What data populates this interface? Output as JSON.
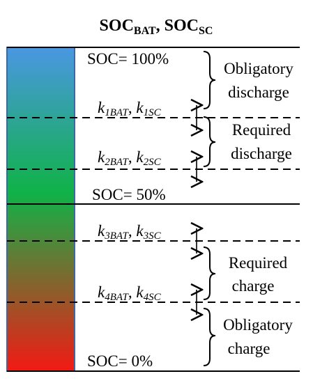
{
  "title": {
    "prefix1": "SOC",
    "sub1": "BAT",
    "separator": ", ",
    "prefix2": "SOC",
    "sub2": "SC"
  },
  "levels": {
    "top": "SOC= 100%",
    "middle": "SOC= 50%",
    "bottom": "SOC= 0%"
  },
  "thresholds": [
    {
      "k": "k",
      "i1": "1BAT",
      "sep": ", ",
      "k2": "k",
      "i2": "1SC"
    },
    {
      "k": "k",
      "i1": "2BAT",
      "sep": ", ",
      "k2": "k",
      "i2": "2SC"
    },
    {
      "k": "k",
      "i1": "3BAT",
      "sep": ", ",
      "k2": "k",
      "i2": "3SC"
    },
    {
      "k": "k",
      "i1": "4BAT",
      "sep": ", ",
      "k2": "k",
      "i2": "4SC"
    }
  ],
  "regions": [
    {
      "line1": "Obligatory",
      "line2": "discharge"
    },
    {
      "line1": "Required",
      "line2": "discharge"
    },
    {
      "line1": "Required",
      "line2": "charge"
    },
    {
      "line1": "Obligatory",
      "line2": "charge"
    }
  ],
  "colors": {
    "bar_top": "#4a97e2",
    "bar_middle": "#10b248",
    "bar_bottom": "#f21a14",
    "bar_border": "#3f67a6",
    "lines": "#000000"
  }
}
